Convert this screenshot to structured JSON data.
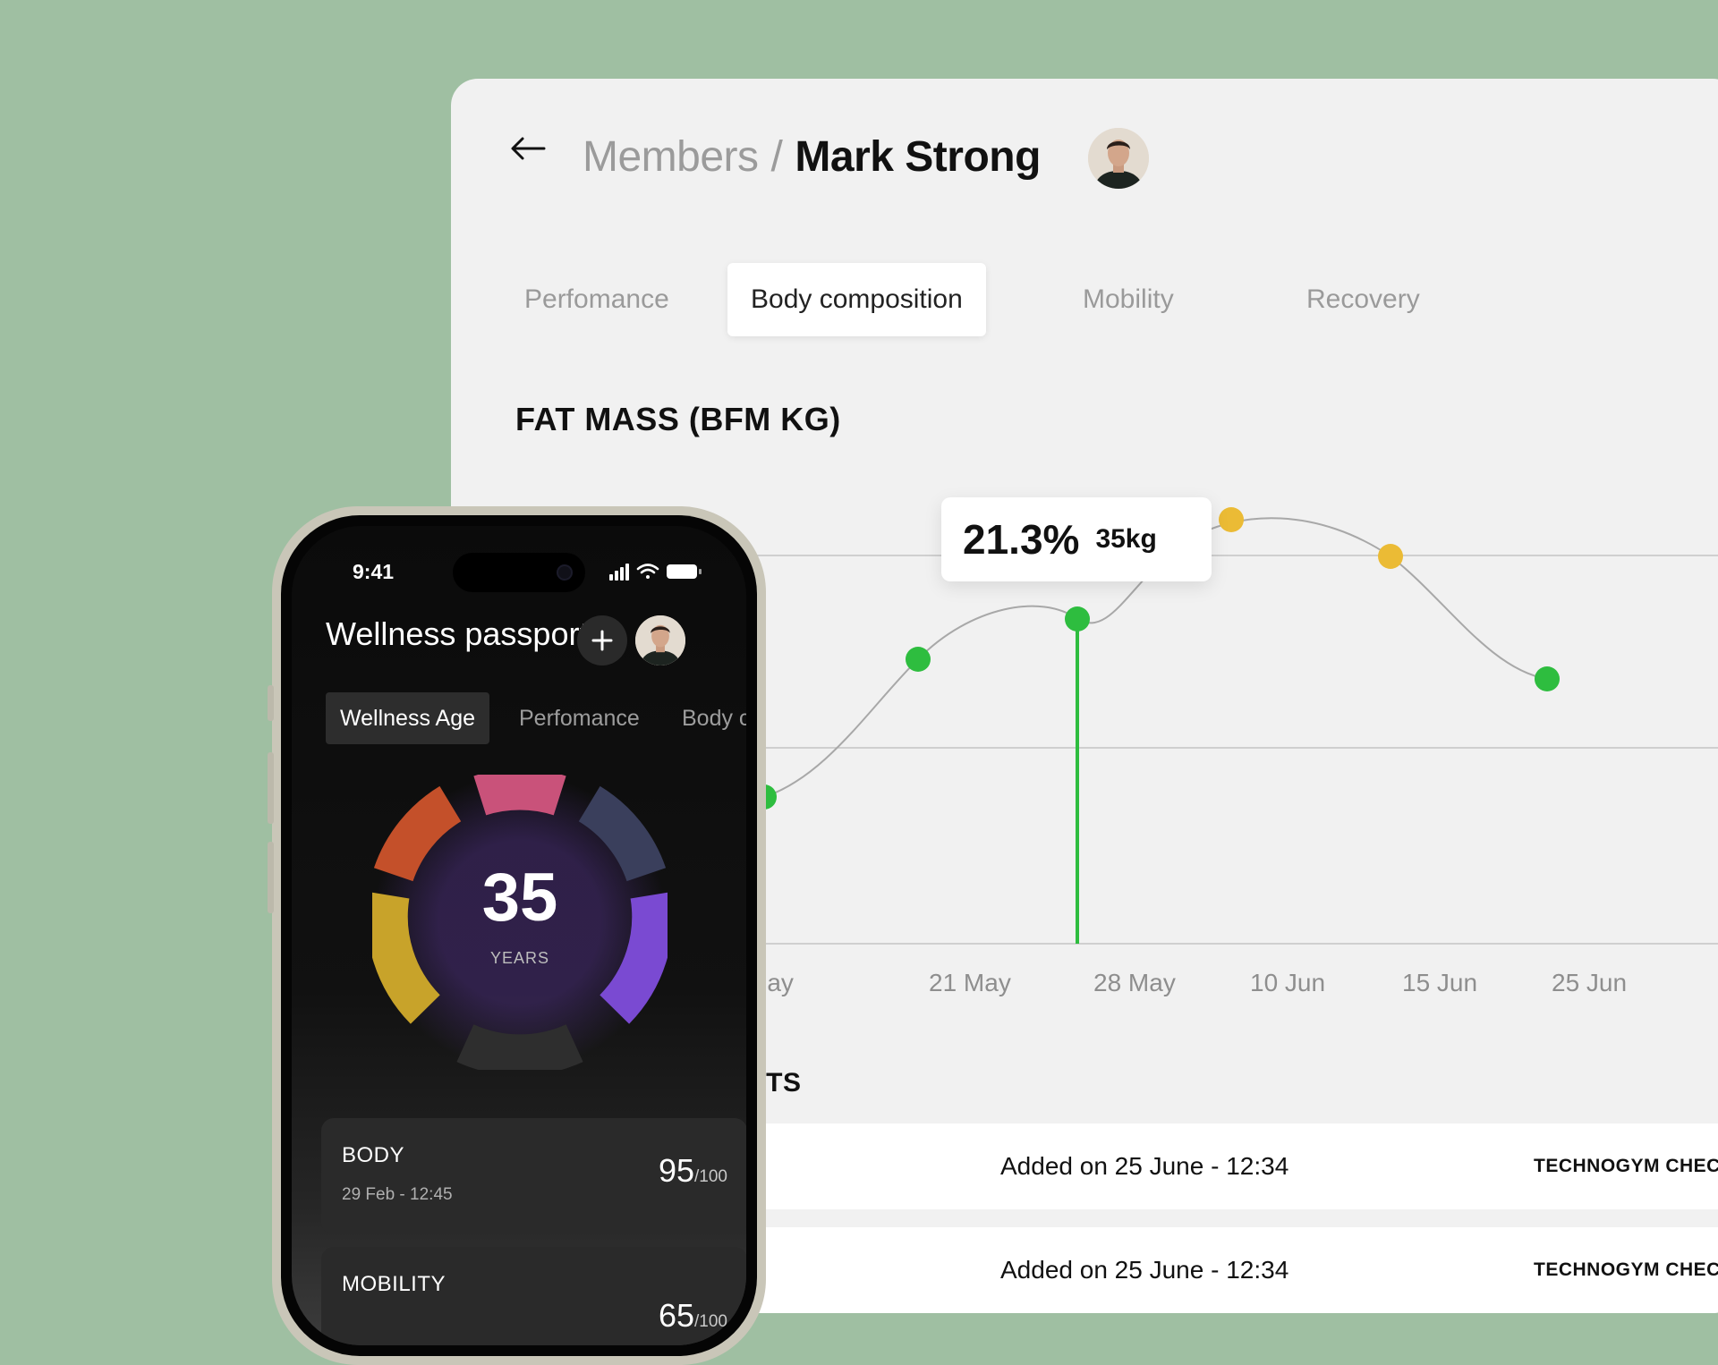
{
  "breadcrumb": {
    "parent": "Members",
    "separator": "/",
    "current": "Mark Strong"
  },
  "tabs": [
    {
      "label": "Perfomance",
      "active": false
    },
    {
      "label": "Body composition",
      "active": true
    },
    {
      "label": "Mobility",
      "active": false
    },
    {
      "label": "Recovery",
      "active": false
    }
  ],
  "chart": {
    "title": "FAT MASS (BFM KG)",
    "tooltip": {
      "percent": "21.3%",
      "weight": "35kg"
    },
    "x_ticks": [
      "May",
      "21  May",
      "28 May",
      "10 Jun",
      "15 Jun",
      "25 Jun"
    ],
    "colors": {
      "normal": "#2ebd3f",
      "warning": "#ebbb35",
      "line": "#a8a8a8",
      "selected": "#2ebd3f"
    }
  },
  "chart_data": {
    "type": "line",
    "title": "FAT MASS (BFM KG)",
    "x": [
      "May",
      "21  May",
      "28 May",
      "10 Jun",
      "15 Jun",
      "25 Jun"
    ],
    "points": [
      {
        "x": "May",
        "status": "normal"
      },
      {
        "x": "21  May",
        "status": "normal"
      },
      {
        "x": "28 May",
        "status": "normal",
        "selected": true,
        "percent": 21.3,
        "kg": 35
      },
      {
        "x": "10 Jun",
        "status": "warning"
      },
      {
        "x": "15 Jun",
        "status": "warning"
      },
      {
        "x": "25 Jun",
        "status": "normal"
      }
    ],
    "grid": true
  },
  "measurements": {
    "title_partial": "NTS",
    "rows": [
      {
        "added": "Added on 25 June  - 12:34",
        "device": "TECHNOGYM CHEC"
      },
      {
        "added": "Added on 25 June  - 12:34",
        "device": "TECHNOGYM CHEC"
      }
    ]
  },
  "phone": {
    "time": "9:41",
    "title": "Wellness passport",
    "add_icon": "plus-icon",
    "chips": [
      {
        "label": "Wellness Age",
        "active": true
      },
      {
        "label": "Perfomance",
        "active": false
      },
      {
        "label": "Body co",
        "active": false
      }
    ],
    "ring": {
      "value": "35",
      "label": "YEARS"
    },
    "cards": [
      {
        "name": "BODY",
        "date": "29 Feb - 12:45",
        "score": "95",
        "max": "/100"
      },
      {
        "name": "MOBILITY",
        "date": "",
        "score": "65",
        "max": "/100"
      }
    ]
  }
}
